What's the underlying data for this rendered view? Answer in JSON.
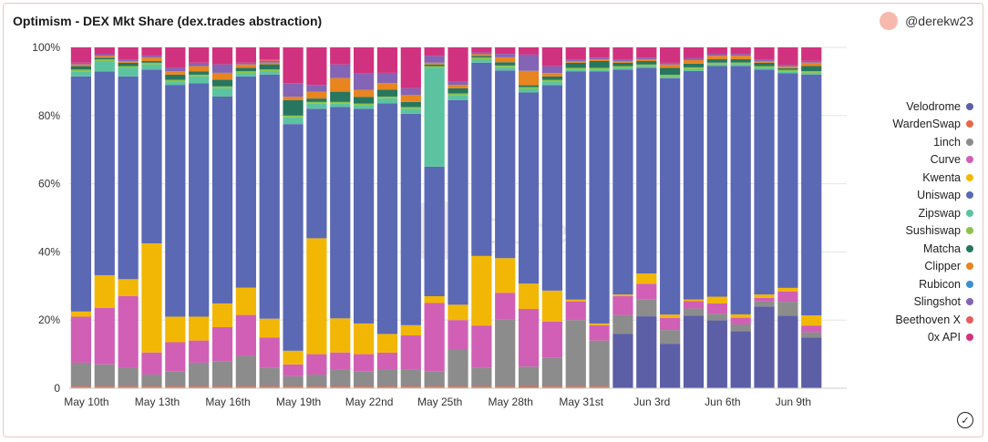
{
  "header": {
    "title": "Optimism - DEX Mkt Share (dex.trades abstraction)",
    "author": "@derekw23"
  },
  "watermark": "Dune",
  "chart_data": {
    "type": "bar",
    "stacked": true,
    "normalized": true,
    "title": "Optimism - DEX Mkt Share (dex.trades abstraction)",
    "ylim": [
      0,
      100
    ],
    "y_ticks": [
      "0",
      "20%",
      "40%",
      "60%",
      "80%",
      "100%"
    ],
    "x_ticks": [
      "May 10th",
      "May 13th",
      "May 16th",
      "May 19th",
      "May 22nd",
      "May 25th",
      "May 28th",
      "May 31st",
      "Jun 3rd",
      "Jun 6th",
      "Jun 9th"
    ],
    "legend_position": "right",
    "stack_order": [
      "Velodrome",
      "WardenSwap",
      "1inch",
      "Curve",
      "Kwenta",
      "Uniswap",
      "Zipswap",
      "Sushiswap",
      "Matcha",
      "Clipper",
      "Rubicon",
      "Slingshot",
      "Beethoven X",
      "0x API"
    ],
    "categories": [
      "May 10",
      "May 11",
      "May 12",
      "May 13",
      "May 14",
      "May 15",
      "May 16",
      "May 17",
      "May 18",
      "May 19",
      "May 20",
      "May 21",
      "May 22",
      "May 23",
      "May 24",
      "May 25",
      "May 26",
      "May 27",
      "May 28",
      "May 29",
      "May 30",
      "May 31",
      "Jun 1",
      "Jun 2",
      "Jun 3",
      "Jun 4",
      "Jun 5",
      "Jun 6",
      "Jun 7",
      "Jun 8",
      "Jun 9",
      "Jun 10",
      "Jun 11"
    ],
    "series": [
      {
        "name": "Velodrome",
        "color": "#5c5ea6",
        "values": [
          0,
          0,
          0,
          0,
          0,
          0,
          0,
          0,
          0,
          0,
          0,
          0,
          0,
          0,
          0,
          0,
          0,
          0,
          0,
          0,
          0,
          0,
          0,
          16,
          21,
          13,
          20,
          20,
          17,
          24,
          21,
          15,
          0
        ]
      },
      {
        "name": "WardenSwap",
        "color": "#e8684a",
        "values": [
          0.5,
          0.5,
          0.5,
          0.5,
          0.5,
          0.5,
          0.5,
          0.5,
          0.5,
          0.5,
          0.5,
          0.5,
          0.5,
          0.5,
          0.5,
          0.5,
          0.5,
          0.5,
          0.5,
          0.5,
          0.5,
          0.5,
          0.5,
          0,
          0,
          0,
          0,
          0,
          0,
          0,
          0,
          0,
          0
        ]
      },
      {
        "name": "1inch",
        "color": "#8c8c8c",
        "values": [
          7,
          6.5,
          5.5,
          3.5,
          4.5,
          7,
          7.5,
          9,
          5.5,
          3,
          3.5,
          5,
          4.5,
          5,
          5,
          4.5,
          11,
          5.5,
          20.5,
          5.5,
          8.5,
          19.5,
          13.5,
          5.5,
          5,
          4,
          2,
          2,
          2,
          1.5,
          4,
          1.5,
          0
        ]
      },
      {
        "name": "Curve",
        "color": "#d15fb6",
        "values": [
          13.5,
          16.5,
          21,
          6.5,
          8.5,
          6.5,
          10,
          12,
          9,
          3.5,
          6,
          5,
          5,
          5,
          10,
          20,
          8.5,
          12.5,
          8,
          16,
          10.5,
          5.5,
          4.5,
          5.5,
          4.5,
          3.5,
          2,
          3,
          2,
          1,
          3,
          2,
          0
        ]
      },
      {
        "name": "Kwenta",
        "color": "#f2b705",
        "values": [
          1.5,
          9.5,
          5,
          32,
          7.5,
          7,
          7,
          8,
          5.5,
          4,
          34,
          10,
          9,
          5.5,
          3,
          2,
          4.5,
          20.5,
          10.5,
          7,
          9,
          0.5,
          0.5,
          0.5,
          3,
          1,
          0.5,
          2,
          1,
          1,
          1,
          3,
          0
        ]
      },
      {
        "name": "Uniswap",
        "color": "#5b68b4",
        "values": [
          69,
          59.5,
          59.5,
          51,
          68,
          68.5,
          61,
          62,
          72,
          66.5,
          38,
          62,
          63,
          68,
          62,
          38,
          60,
          57,
          57,
          53,
          60,
          67,
          74,
          66,
          60,
          69,
          63,
          68,
          74,
          66,
          62,
          71,
          0
        ]
      },
      {
        "name": "Zipswap",
        "color": "#5cc3a0",
        "values": [
          1.5,
          3,
          2.5,
          1.5,
          1,
          2,
          2.5,
          1,
          1,
          2,
          1.5,
          1,
          1,
          1.5,
          1.5,
          29,
          1.5,
          1,
          1,
          1,
          1,
          0.5,
          0.5,
          0.5,
          0.5,
          0.5,
          0.5,
          0.5,
          0.5,
          0.5,
          0.5,
          0.5,
          0
        ]
      },
      {
        "name": "Sushiswap",
        "color": "#8bc34a",
        "values": [
          0.5,
          0.5,
          0.5,
          0.5,
          0.5,
          0.5,
          0.5,
          0.5,
          0.5,
          0.5,
          0.5,
          0.5,
          0.5,
          0.5,
          0.5,
          0.5,
          0.5,
          0.5,
          0.5,
          0.5,
          0.5,
          0.5,
          0.5,
          0.5,
          0.5,
          0.5,
          0.5,
          0.5,
          0.5,
          0.5,
          0.5,
          0.5,
          0
        ]
      },
      {
        "name": "Matcha",
        "color": "#27765f",
        "values": [
          1,
          0.5,
          1,
          0.5,
          1.5,
          1,
          2,
          1,
          1.5,
          4.5,
          1,
          3,
          2,
          2,
          1.5,
          0.5,
          1.5,
          0.5,
          1,
          0.5,
          1,
          1.5,
          2,
          1,
          1,
          2,
          1,
          1,
          1,
          1,
          0.5,
          1.5,
          0
        ]
      },
      {
        "name": "Clipper",
        "color": "#e8851f",
        "values": [
          0.5,
          0.5,
          0.5,
          1,
          1,
          1.5,
          2,
          1,
          0.5,
          1,
          2,
          4,
          2,
          2,
          2,
          0.5,
          1,
          0.5,
          1.5,
          4,
          1,
          0.5,
          0.5,
          0.5,
          0.5,
          1,
          1,
          1,
          1,
          0.5,
          0.5,
          1,
          0
        ]
      },
      {
        "name": "Rubicon",
        "color": "#3a8fd1",
        "values": [
          0,
          0,
          0,
          0,
          0,
          0,
          0,
          0,
          0,
          0,
          0,
          0,
          0,
          0,
          0,
          0,
          0,
          0,
          0,
          0,
          0,
          0,
          0,
          0,
          0,
          0,
          0,
          0,
          0,
          0,
          0,
          0,
          0
        ]
      },
      {
        "name": "Slingshot",
        "color": "#8464b5",
        "values": [
          0.5,
          0.5,
          0.5,
          0.5,
          1,
          1,
          2.5,
          0.5,
          0.5,
          4,
          2,
          4,
          5,
          3,
          2,
          2,
          1,
          0.5,
          1,
          4.5,
          2,
          0.5,
          0.5,
          0.5,
          0.5,
          0.5,
          0.5,
          0.5,
          0.5,
          0.5,
          0.5,
          0.5,
          0
        ]
      },
      {
        "name": "Beethoven X",
        "color": "#e25d5d",
        "values": [
          0,
          0,
          0,
          0,
          0,
          0,
          0,
          0,
          0.5,
          0,
          0,
          0,
          0,
          0,
          0,
          0,
          0,
          0,
          0,
          0,
          0,
          0,
          0,
          0,
          0,
          0,
          0,
          0,
          0,
          0,
          0,
          0,
          0
        ]
      },
      {
        "name": "0x API",
        "color": "#d1327f",
        "values": [
          4.5,
          2,
          3.5,
          2.5,
          6,
          4.5,
          5,
          4.5,
          3.5,
          10.5,
          11,
          5,
          7.5,
          7.5,
          12,
          2.5,
          10,
          1.5,
          2,
          2,
          5.5,
          3.5,
          3,
          3.5,
          3,
          4.5,
          3,
          2,
          2,
          3.5,
          5,
          4,
          0
        ]
      }
    ]
  },
  "legend": [
    {
      "label": "Velodrome",
      "color": "#5c5ea6"
    },
    {
      "label": "WardenSwap",
      "color": "#e8684a"
    },
    {
      "label": "1inch",
      "color": "#8c8c8c"
    },
    {
      "label": "Curve",
      "color": "#d15fb6"
    },
    {
      "label": "Kwenta",
      "color": "#f2b705"
    },
    {
      "label": "Uniswap",
      "color": "#5b68b4"
    },
    {
      "label": "Zipswap",
      "color": "#5cc3a0"
    },
    {
      "label": "Sushiswap",
      "color": "#8bc34a"
    },
    {
      "label": "Matcha",
      "color": "#27765f"
    },
    {
      "label": "Clipper",
      "color": "#e8851f"
    },
    {
      "label": "Rubicon",
      "color": "#3a8fd1"
    },
    {
      "label": "Slingshot",
      "color": "#8464b5"
    },
    {
      "label": "Beethoven X",
      "color": "#e25d5d"
    },
    {
      "label": "0x API",
      "color": "#d1327f"
    }
  ],
  "icons": {
    "check": "check-circle-icon",
    "avatar": "avatar"
  }
}
